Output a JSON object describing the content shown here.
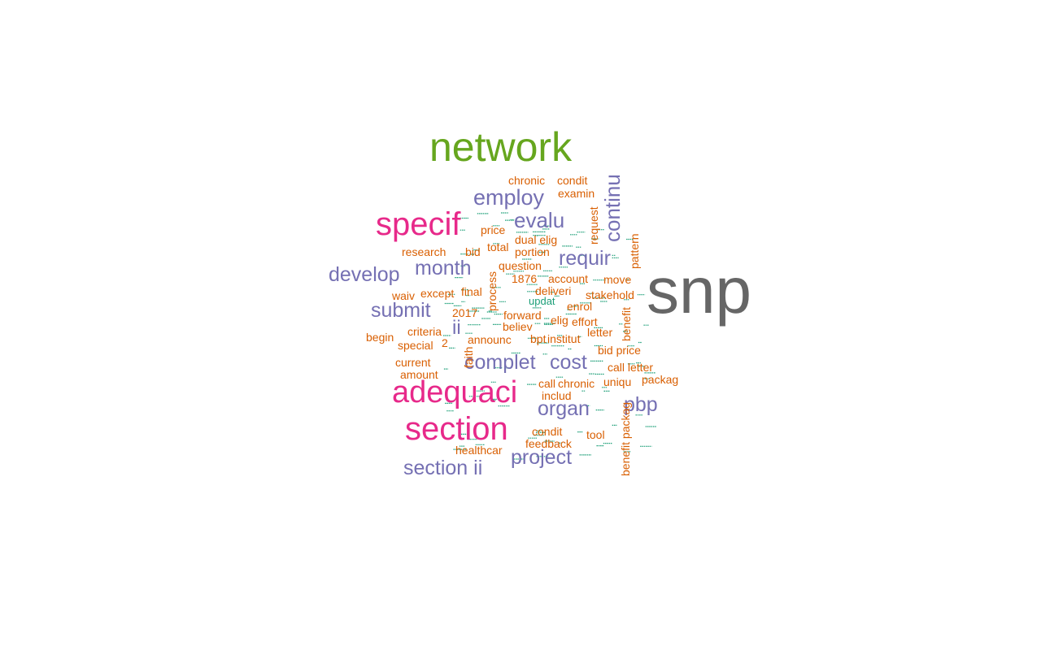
{
  "palette": {
    "gray": "#666666",
    "green": "#66a61e",
    "magenta": "#e7298a",
    "purple": "#7570b3",
    "orange": "#d95f02",
    "teal": "#1b9e77"
  },
  "words": [
    {
      "text": "snp",
      "size": 80,
      "color": "gray"
    },
    {
      "text": "network",
      "size": 50,
      "color": "green"
    },
    {
      "text": "specif",
      "size": 40,
      "color": "magenta"
    },
    {
      "text": "adequaci",
      "size": 38,
      "color": "magenta"
    },
    {
      "text": "section",
      "size": 40,
      "color": "magenta"
    },
    {
      "text": "continu",
      "size": 26,
      "color": "purple",
      "vertical": true
    },
    {
      "text": "employ",
      "size": 27,
      "color": "purple"
    },
    {
      "text": "evalu",
      "size": 26,
      "color": "purple"
    },
    {
      "text": "requir",
      "size": 25,
      "color": "purple"
    },
    {
      "text": "month",
      "size": 25,
      "color": "purple"
    },
    {
      "text": "develop",
      "size": 25,
      "color": "purple"
    },
    {
      "text": "submit",
      "size": 25,
      "color": "purple"
    },
    {
      "text": "ii",
      "size": 24,
      "color": "purple"
    },
    {
      "text": "complet",
      "size": 25,
      "color": "purple"
    },
    {
      "text": "cost",
      "size": 25,
      "color": "purple"
    },
    {
      "text": "organ",
      "size": 25,
      "color": "purple"
    },
    {
      "text": "pbp",
      "size": 25,
      "color": "purple"
    },
    {
      "text": "project",
      "size": 25,
      "color": "purple"
    },
    {
      "text": "section ii",
      "size": 25,
      "color": "purple"
    },
    {
      "text": "chronic",
      "size": 14,
      "color": "orange"
    },
    {
      "text": "condit",
      "size": 14,
      "color": "orange"
    },
    {
      "text": "examin",
      "size": 14,
      "color": "orange"
    },
    {
      "text": "request",
      "size": 14,
      "color": "orange",
      "vertical": true
    },
    {
      "text": "price",
      "size": 14,
      "color": "orange"
    },
    {
      "text": "total",
      "size": 14,
      "color": "orange"
    },
    {
      "text": "dual elig",
      "size": 14,
      "color": "orange"
    },
    {
      "text": "research",
      "size": 14,
      "color": "orange"
    },
    {
      "text": "bid",
      "size": 14,
      "color": "orange"
    },
    {
      "text": "portion",
      "size": 14,
      "color": "orange"
    },
    {
      "text": "pattern",
      "size": 14,
      "color": "orange",
      "vertical": true
    },
    {
      "text": "question",
      "size": 14,
      "color": "orange"
    },
    {
      "text": "1876",
      "size": 14,
      "color": "orange"
    },
    {
      "text": "account",
      "size": 14,
      "color": "orange"
    },
    {
      "text": "move",
      "size": 14,
      "color": "orange"
    },
    {
      "text": "waiv",
      "size": 14,
      "color": "orange"
    },
    {
      "text": "except",
      "size": 14,
      "color": "orange"
    },
    {
      "text": "final",
      "size": 14,
      "color": "orange"
    },
    {
      "text": "deliveri",
      "size": 14,
      "color": "orange"
    },
    {
      "text": "stakehold",
      "size": 14,
      "color": "orange"
    },
    {
      "text": "process",
      "size": 14,
      "color": "orange",
      "vertical": true
    },
    {
      "text": "updat",
      "size": 13,
      "color": "teal"
    },
    {
      "text": "enrol",
      "size": 14,
      "color": "orange"
    },
    {
      "text": "2017",
      "size": 14,
      "color": "orange"
    },
    {
      "text": "forward",
      "size": 14,
      "color": "orange"
    },
    {
      "text": "elig",
      "size": 14,
      "color": "orange"
    },
    {
      "text": "effort",
      "size": 14,
      "color": "orange"
    },
    {
      "text": "benefit",
      "size": 14,
      "color": "orange",
      "vertical": true
    },
    {
      "text": "begin",
      "size": 14,
      "color": "orange"
    },
    {
      "text": "criteria",
      "size": 14,
      "color": "orange"
    },
    {
      "text": "believ",
      "size": 14,
      "color": "orange"
    },
    {
      "text": "letter",
      "size": 14,
      "color": "orange"
    },
    {
      "text": "special",
      "size": 14,
      "color": "orange"
    },
    {
      "text": "2",
      "size": 14,
      "color": "orange"
    },
    {
      "text": "announc",
      "size": 14,
      "color": "orange"
    },
    {
      "text": "bpt",
      "size": 14,
      "color": "orange"
    },
    {
      "text": "institut",
      "size": 14,
      "color": "orange"
    },
    {
      "text": "bid price",
      "size": 14,
      "color": "orange"
    },
    {
      "text": "faith",
      "size": 14,
      "color": "orange",
      "vertical": true
    },
    {
      "text": "current",
      "size": 14,
      "color": "orange"
    },
    {
      "text": "call letter",
      "size": 14,
      "color": "orange"
    },
    {
      "text": "amount",
      "size": 14,
      "color": "orange"
    },
    {
      "text": "call",
      "size": 14,
      "color": "orange"
    },
    {
      "text": "chronic",
      "size": 14,
      "color": "orange"
    },
    {
      "text": "uniqu",
      "size": 14,
      "color": "orange"
    },
    {
      "text": "packag",
      "size": 14,
      "color": "orange"
    },
    {
      "text": "includ",
      "size": 14,
      "color": "orange"
    },
    {
      "text": "benefit packag",
      "size": 14,
      "color": "orange",
      "vertical": true
    },
    {
      "text": "condit",
      "size": 14,
      "color": "orange"
    },
    {
      "text": "tool",
      "size": 14,
      "color": "orange"
    },
    {
      "text": "feedback",
      "size": 14,
      "color": "orange"
    },
    {
      "text": "healthcar",
      "size": 14,
      "color": "orange"
    }
  ]
}
